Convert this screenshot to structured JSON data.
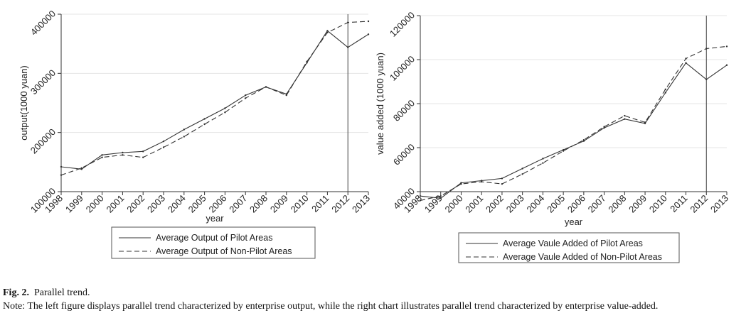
{
  "caption": {
    "label": "Fig. 2.",
    "title": "Parallel trend.",
    "note": "Note: The left figure displays parallel trend characterized by enterprise output, while the right chart illustrates parallel trend characterized by enterprise value-added."
  },
  "chart_data": [
    {
      "type": "line",
      "title": "",
      "xlabel": "year",
      "ylabel": "output(1000 yuan)",
      "x": [
        1998,
        1999,
        2000,
        2001,
        2002,
        2003,
        2004,
        2005,
        2006,
        2007,
        2008,
        2009,
        2010,
        2011,
        2012,
        2013
      ],
      "x_ticks": [
        "1998",
        "1999",
        "2000",
        "2001",
        "2002",
        "2003",
        "2004",
        "2005",
        "2006",
        "2007",
        "2008",
        "2009",
        "2010",
        "2011",
        "2012",
        "2013"
      ],
      "xlim": [
        1998,
        2013
      ],
      "ylim": [
        100000,
        400000
      ],
      "y_ticks": [
        100000,
        200000,
        300000,
        400000
      ],
      "y_tick_labels": [
        "100000",
        "200000",
        "300000",
        "400000"
      ],
      "vline": 2012,
      "grid": "horizontal",
      "legend_position": "bottom",
      "series": [
        {
          "name": "Average Output of Pilot Areas",
          "style": "solid",
          "values": [
            142000,
            138000,
            162000,
            166000,
            168000,
            185000,
            205000,
            223000,
            241000,
            263000,
            277000,
            265000,
            318000,
            372000,
            344000,
            366000
          ]
        },
        {
          "name": "Average Output of Non-Pilot Areas",
          "style": "dashed",
          "values": [
            128000,
            140000,
            158000,
            162000,
            158000,
            175000,
            193000,
            214000,
            234000,
            258000,
            277000,
            263000,
            320000,
            369000,
            386000,
            388000
          ]
        }
      ]
    },
    {
      "type": "line",
      "title": "",
      "xlabel": "year",
      "ylabel": "value added (1000 yuan)",
      "x": [
        1998,
        1999,
        2000,
        2001,
        2002,
        2003,
        2004,
        2005,
        2006,
        2007,
        2008,
        2009,
        2010,
        2011,
        2012,
        2013
      ],
      "x_ticks": [
        "1998",
        "1999",
        "2000",
        "2001",
        "2002",
        "2003",
        "2004",
        "2005",
        "2006",
        "2007",
        "2008",
        "2009",
        "2010",
        "2011",
        "2012",
        "2013"
      ],
      "xlim": [
        1998,
        2013
      ],
      "ylim": [
        40000,
        120000
      ],
      "y_ticks": [
        40000,
        60000,
        80000,
        100000,
        120000
      ],
      "y_tick_labels": [
        "40000",
        "60000",
        "80000",
        "100000",
        "120000"
      ],
      "vline": 2012,
      "grid": "horizontal",
      "legend_position": "bottom",
      "series": [
        {
          "name": "Average Vaule Added of Pilot Areas",
          "style": "solid",
          "values": [
            38000,
            37000,
            44000,
            45000,
            46000,
            50500,
            55000,
            59000,
            63000,
            69000,
            73000,
            71000,
            85000,
            98500,
            91000,
            97500
          ]
        },
        {
          "name": "Average Vaule Added of Non-Pilot Areas",
          "style": "dashed",
          "values": [
            36000,
            38000,
            43500,
            44500,
            43500,
            48000,
            53000,
            58500,
            63500,
            69500,
            74500,
            71500,
            86500,
            100500,
            105000,
            106000
          ]
        }
      ]
    }
  ]
}
